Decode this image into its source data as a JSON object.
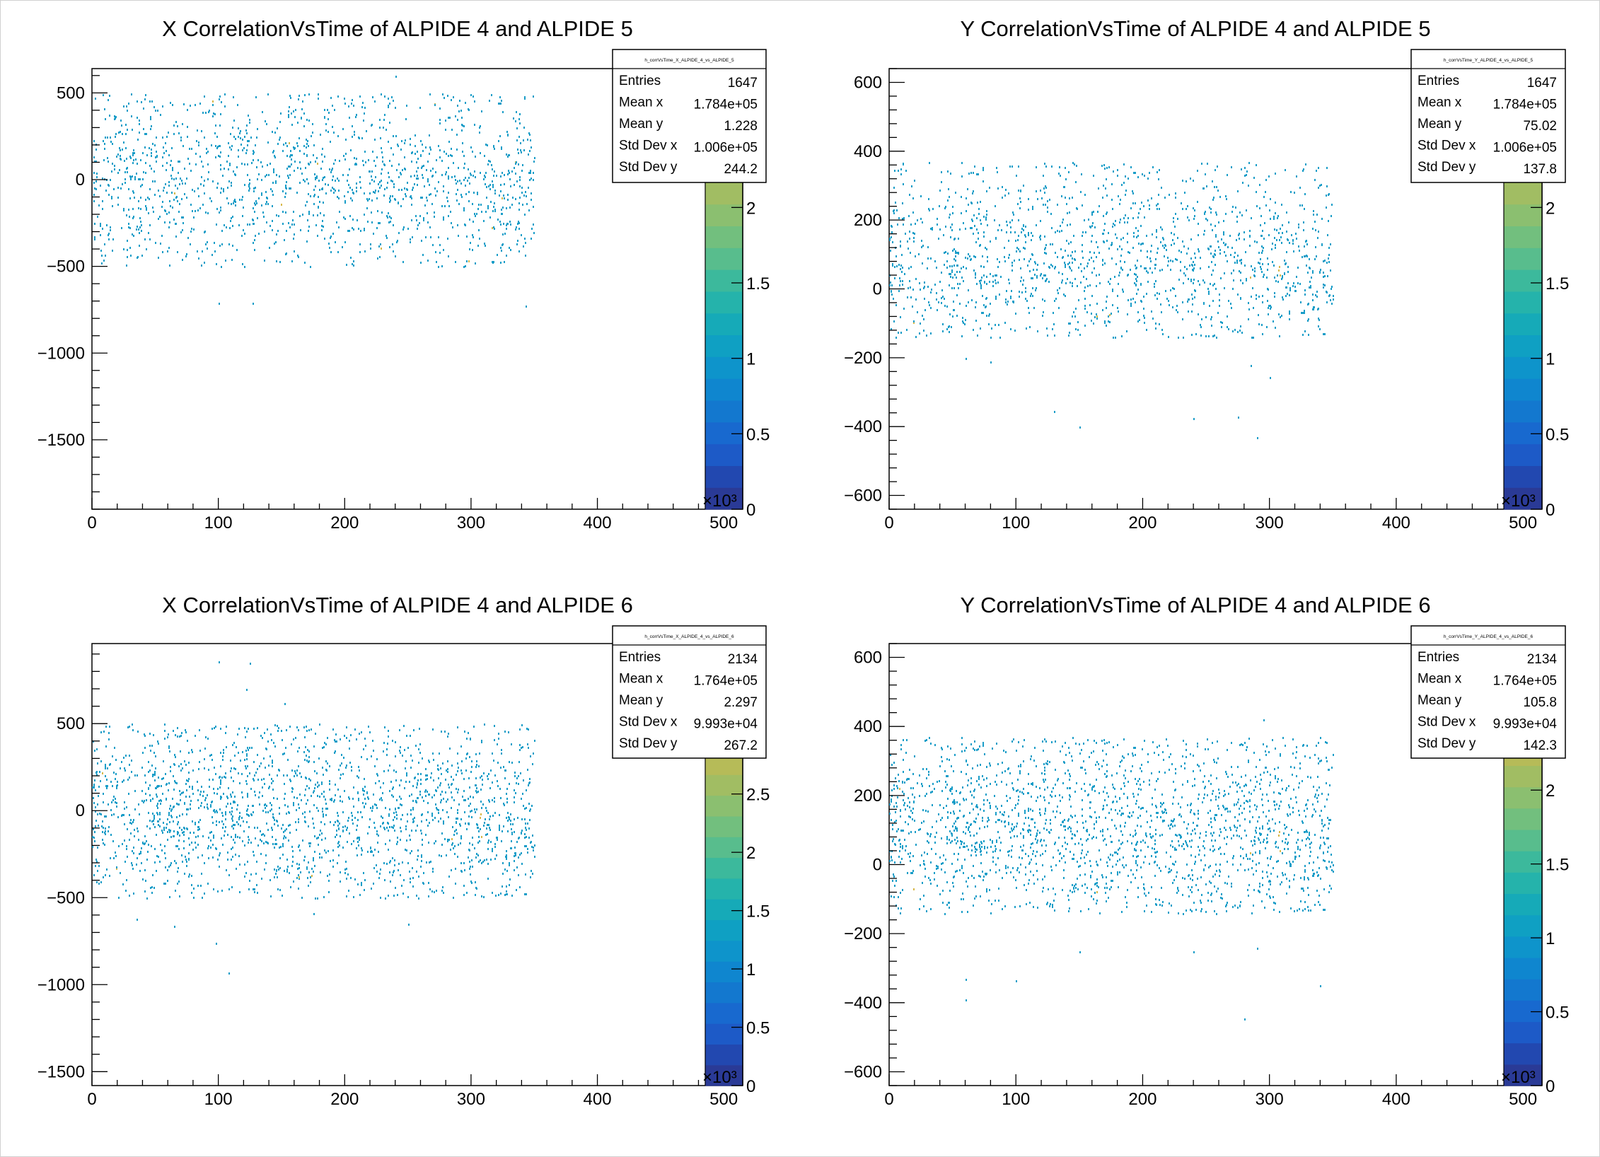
{
  "pads": [
    {
      "title": "X CorrelationVsTime of ALPIDE 4 and ALPIDE 5",
      "stats": {
        "name": "h_corrVsTime_X_ALPIDE_4_vs_ALPIDE_5",
        "rows": [
          {
            "label": "Entries",
            "value": "1647"
          },
          {
            "label": "Mean x",
            "value": "1.784e+05"
          },
          {
            "label": "Mean y",
            "value": "1.228"
          },
          {
            "label": "Std Dev x",
            "value": "1.006e+05"
          },
          {
            "label": "Std Dev y",
            "value": "244.2"
          }
        ]
      },
      "chart_data": {
        "type": "heatmap",
        "xlim": [
          0,
          515
        ],
        "ylim": [
          -1900,
          640
        ],
        "x_ticks": [
          "0",
          "100",
          "200",
          "300",
          "400",
          "500"
        ],
        "y_ticks": [
          {
            "v": 500,
            "label": "500"
          },
          {
            "v": 0,
            "label": "0"
          },
          {
            "v": -500,
            "label": "−500"
          },
          {
            "v": -1000,
            "label": "−1000"
          },
          {
            "v": -1500,
            "label": "−1500"
          }
        ],
        "x_entries_range": [
          0,
          350
        ],
        "y_band": [
          -500,
          500
        ],
        "y_mean": 1.228,
        "y_sd": 244.2,
        "entries": 1647,
        "outliers": [
          [
            100,
            -710
          ],
          [
            127,
            -710
          ],
          [
            343,
            -725
          ],
          [
            240,
            600
          ]
        ],
        "palette_ticks": [
          {
            "v": 0,
            "label": "0"
          },
          {
            "v": 0.5,
            "label": "0.5"
          },
          {
            "v": 1,
            "label": "1"
          },
          {
            "v": 1.5,
            "label": "1.5"
          },
          {
            "v": 2,
            "label": "2"
          }
        ],
        "palette_max": 2.6,
        "palette_exp": "×10³"
      }
    },
    {
      "title": "Y CorrelationVsTime of ALPIDE 4 and ALPIDE 5",
      "stats": {
        "name": "h_corrVsTime_Y_ALPIDE_4_vs_ALPIDE_5",
        "rows": [
          {
            "label": "Entries",
            "value": "1647"
          },
          {
            "label": "Mean x",
            "value": "1.784e+05"
          },
          {
            "label": "Mean y",
            "value": "75.02"
          },
          {
            "label": "Std Dev x",
            "value": "1.006e+05"
          },
          {
            "label": "Std Dev y",
            "value": "137.8"
          }
        ]
      },
      "chart_data": {
        "type": "heatmap",
        "xlim": [
          0,
          515
        ],
        "ylim": [
          -640,
          640
        ],
        "x_ticks": [
          "0",
          "100",
          "200",
          "300",
          "400",
          "500"
        ],
        "y_ticks": [
          {
            "v": 600,
            "label": "600"
          },
          {
            "v": 400,
            "label": "400"
          },
          {
            "v": 200,
            "label": "200"
          },
          {
            "v": 0,
            "label": "0"
          },
          {
            "v": -200,
            "label": "−200"
          },
          {
            "v": -400,
            "label": "−400"
          },
          {
            "v": -600,
            "label": "−600"
          }
        ],
        "x_entries_range": [
          0,
          350
        ],
        "y_band": [
          -140,
          370
        ],
        "y_mean": 75.02,
        "y_sd": 137.8,
        "entries": 1647,
        "outliers": [
          [
            60,
            -200
          ],
          [
            80,
            -210
          ],
          [
            130,
            -355
          ],
          [
            150,
            -400
          ],
          [
            240,
            -375
          ],
          [
            275,
            -370
          ],
          [
            290,
            -430
          ],
          [
            300,
            -255
          ],
          [
            285,
            -220
          ],
          [
            240,
            30
          ]
        ],
        "palette_ticks": [
          {
            "v": 0,
            "label": "0"
          },
          {
            "v": 0.5,
            "label": "0.5"
          },
          {
            "v": 1,
            "label": "1"
          },
          {
            "v": 1.5,
            "label": "1.5"
          },
          {
            "v": 2,
            "label": "2"
          }
        ],
        "palette_max": 2.6,
        "palette_exp": "×10³"
      }
    },
    {
      "title": "X CorrelationVsTime of ALPIDE 4 and ALPIDE 6",
      "stats": {
        "name": "h_corrVsTime_X_ALPIDE_4_vs_ALPIDE_6",
        "rows": [
          {
            "label": "Entries",
            "value": "2134"
          },
          {
            "label": "Mean x",
            "value": "1.764e+05"
          },
          {
            "label": "Mean y",
            "value": "2.297"
          },
          {
            "label": "Std Dev x",
            "value": "9.993e+04"
          },
          {
            "label": "Std Dev y",
            "value": "267.2"
          }
        ]
      },
      "chart_data": {
        "type": "heatmap",
        "xlim": [
          0,
          515
        ],
        "ylim": [
          -1580,
          960
        ],
        "x_ticks": [
          "0",
          "100",
          "200",
          "300",
          "400",
          "500"
        ],
        "y_ticks": [
          {
            "v": 500,
            "label": "500"
          },
          {
            "v": 0,
            "label": "0"
          },
          {
            "v": -500,
            "label": "−500"
          },
          {
            "v": -1000,
            "label": "−1000"
          },
          {
            "v": -1500,
            "label": "−1500"
          }
        ],
        "x_entries_range": [
          0,
          350
        ],
        "y_band": [
          -500,
          500
        ],
        "y_mean": 2.297,
        "y_sd": 267.2,
        "entries": 2134,
        "outliers": [
          [
            100,
            860
          ],
          [
            125,
            850
          ],
          [
            122,
            700
          ],
          [
            152,
            620
          ],
          [
            108,
            -930
          ],
          [
            98,
            -760
          ],
          [
            35,
            -620
          ],
          [
            65,
            -660
          ],
          [
            175,
            -590
          ],
          [
            250,
            -650
          ]
        ],
        "palette_ticks": [
          {
            "v": 0,
            "label": "0"
          },
          {
            "v": 0.5,
            "label": "0.5"
          },
          {
            "v": 1,
            "label": "1"
          },
          {
            "v": 1.5,
            "label": "1.5"
          },
          {
            "v": 2,
            "label": "2"
          },
          {
            "v": 2.5,
            "label": "2.5"
          }
        ],
        "palette_max": 3.2,
        "palette_exp": "×10³"
      }
    },
    {
      "title": "Y CorrelationVsTime of ALPIDE 4 and ALPIDE 6",
      "stats": {
        "name": "h_corrVsTime_Y_ALPIDE_4_vs_ALPIDE_6",
        "rows": [
          {
            "label": "Entries",
            "value": "2134"
          },
          {
            "label": "Mean x",
            "value": "1.764e+05"
          },
          {
            "label": "Mean y",
            "value": "105.8"
          },
          {
            "label": "Std Dev x",
            "value": "9.993e+04"
          },
          {
            "label": "Std Dev y",
            "value": "142.3"
          }
        ]
      },
      "chart_data": {
        "type": "heatmap",
        "xlim": [
          0,
          515
        ],
        "ylim": [
          -640,
          640
        ],
        "x_ticks": [
          "0",
          "100",
          "200",
          "300",
          "400",
          "500"
        ],
        "y_ticks": [
          {
            "v": 600,
            "label": "600"
          },
          {
            "v": 400,
            "label": "400"
          },
          {
            "v": 200,
            "label": "200"
          },
          {
            "v": 0,
            "label": "0"
          },
          {
            "v": -200,
            "label": "−200"
          },
          {
            "v": -400,
            "label": "−400"
          },
          {
            "v": -600,
            "label": "−600"
          }
        ],
        "x_entries_range": [
          0,
          350
        ],
        "y_band": [
          -140,
          370
        ],
        "y_mean": 105.8,
        "y_sd": 142.3,
        "entries": 2134,
        "outliers": [
          [
            60,
            -330
          ],
          [
            60,
            -390
          ],
          [
            100,
            -335
          ],
          [
            150,
            -250
          ],
          [
            240,
            -250
          ],
          [
            280,
            -445
          ],
          [
            340,
            -350
          ],
          [
            290,
            -240
          ],
          [
            295,
            420
          ]
        ],
        "palette_ticks": [
          {
            "v": 0,
            "label": "0"
          },
          {
            "v": 0.5,
            "label": "0.5"
          },
          {
            "v": 1,
            "label": "1"
          },
          {
            "v": 1.5,
            "label": "1.5"
          },
          {
            "v": 2,
            "label": "2"
          }
        ],
        "palette_max": 2.6,
        "palette_exp": "×10³"
      }
    }
  ],
  "colors": {
    "point": "#1a9dc8",
    "point_alt": "#d8b84a",
    "palette": [
      "#2a3a96",
      "#2248b0",
      "#1d5ac7",
      "#1869cf",
      "#1378cf",
      "#0f86cf",
      "#0e94cb",
      "#0fa0c3",
      "#16aab8",
      "#25b3ab",
      "#3cb99c",
      "#58bd8d",
      "#72bf7e",
      "#8bbf70",
      "#a1bd63",
      "#b6bb58",
      "#c9b850",
      "#d9b44a"
    ]
  }
}
